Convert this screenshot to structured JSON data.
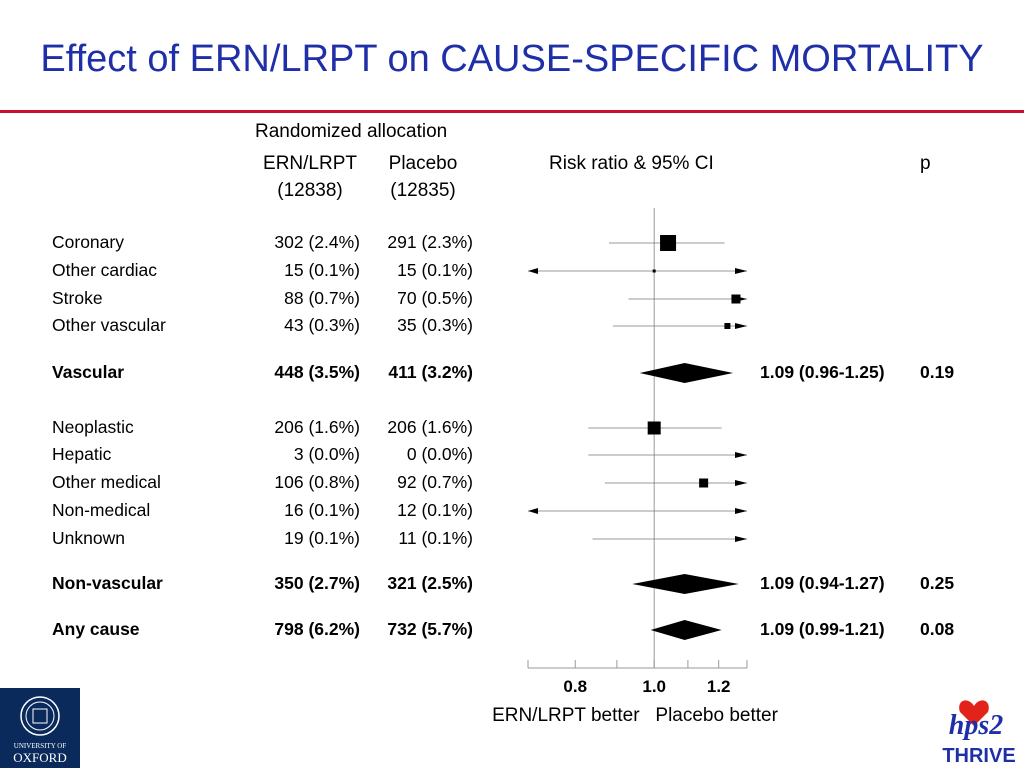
{
  "title": "Effect of ERN/LRPT on CAUSE-SPECIFIC MORTALITY",
  "headers": {
    "randomized": "Randomized allocation",
    "col_ern": "ERN/LRPT",
    "col_ern_n": "(12838)",
    "col_placebo": "Placebo",
    "col_placebo_n": "(12835)",
    "col_ci": "Risk ratio & 95% CI",
    "col_p": "p"
  },
  "chart_data": {
    "type": "forest",
    "x_scale": "log",
    "xlim": [
      0.7,
      1.3
    ],
    "ref_line": 1.0,
    "xticks": [
      0.7,
      0.8,
      0.9,
      1.0,
      1.1,
      1.2,
      1.3
    ],
    "xtick_labels": [
      "",
      "0.8",
      "",
      "1.0",
      "",
      "1.2",
      ""
    ],
    "xlabel_left": "ERN/LRPT better",
    "xlabel_right": "Placebo better",
    "rows": [
      {
        "label": "Coronary",
        "ern": "302 (2.4%)",
        "placebo": "291 (2.3%)",
        "rr": 1.04,
        "lo": 0.88,
        "hi": 1.22,
        "box": "large",
        "bold": false,
        "arrow_left": false,
        "arrow_right": false
      },
      {
        "label": "Other cardiac",
        "ern": "15 (0.1%)",
        "placebo": "15 (0.1%)",
        "rr": 1.0,
        "lo": 0.7,
        "hi": 1.3,
        "box": "tiny",
        "bold": false,
        "arrow_left": true,
        "arrow_right": true
      },
      {
        "label": "Stroke",
        "ern": "88 (0.7%)",
        "placebo": "70 (0.5%)",
        "rr": 1.26,
        "lo": 0.93,
        "hi": 1.3,
        "box": "small",
        "bold": false,
        "arrow_left": false,
        "arrow_right": true
      },
      {
        "label": "Other vascular",
        "ern": "43 (0.3%)",
        "placebo": "35 (0.3%)",
        "rr": 1.23,
        "lo": 0.89,
        "hi": 1.3,
        "box": "smaller",
        "bold": false,
        "arrow_left": false,
        "arrow_right": true
      },
      {
        "label": "Vascular",
        "ern": "448 (3.5%)",
        "placebo": "411 (3.2%)",
        "rr": 1.09,
        "lo": 0.96,
        "hi": 1.25,
        "diamond": true,
        "bold": true,
        "ci_text": "1.09 (0.96-1.25)",
        "p": "0.19"
      },
      {
        "label": "Neoplastic",
        "ern": "206 (1.6%)",
        "placebo": "206 (1.6%)",
        "rr": 1.0,
        "lo": 0.83,
        "hi": 1.21,
        "box": "medium",
        "bold": false,
        "arrow_left": false,
        "arrow_right": false
      },
      {
        "label": "Hepatic",
        "ern": "3 (0.0%)",
        "placebo": "0 (0.0%)",
        "rr": null,
        "lo": 0.83,
        "hi": 1.3,
        "box": "none",
        "bold": false,
        "arrow_left": false,
        "arrow_right": true
      },
      {
        "label": "Other medical",
        "ern": "106 (0.8%)",
        "placebo": "92 (0.7%)",
        "rr": 1.15,
        "lo": 0.87,
        "hi": 1.3,
        "box": "small",
        "bold": false,
        "arrow_left": false,
        "arrow_right": true
      },
      {
        "label": "Non-medical",
        "ern": "16 (0.1%)",
        "placebo": "12 (0.1%)",
        "rr": null,
        "lo": 0.7,
        "hi": 1.3,
        "box": "none",
        "bold": false,
        "arrow_left": true,
        "arrow_right": true
      },
      {
        "label": "Unknown",
        "ern": "19 (0.1%)",
        "placebo": "11 (0.1%)",
        "rr": null,
        "lo": 0.84,
        "hi": 1.3,
        "box": "none",
        "bold": false,
        "arrow_left": false,
        "arrow_right": true
      },
      {
        "label": "Non-vascular",
        "ern": "350 (2.7%)",
        "placebo": "321 (2.5%)",
        "rr": 1.09,
        "lo": 0.94,
        "hi": 1.27,
        "diamond": true,
        "bold": true,
        "ci_text": "1.09 (0.94-1.27)",
        "p": "0.25"
      },
      {
        "label": "Any cause",
        "ern": "798 (6.2%)",
        "placebo": "732 (5.7%)",
        "rr": 1.09,
        "lo": 0.99,
        "hi": 1.21,
        "diamond": true,
        "bold": true,
        "ci_text": "1.09 (0.99-1.21)",
        "p": "0.08"
      }
    ]
  },
  "logos": {
    "oxford_line1": "UNIVERSITY OF",
    "oxford_line2": "OXFORD",
    "thrive_mark": "hps2",
    "thrive_text": "THRIVE"
  }
}
